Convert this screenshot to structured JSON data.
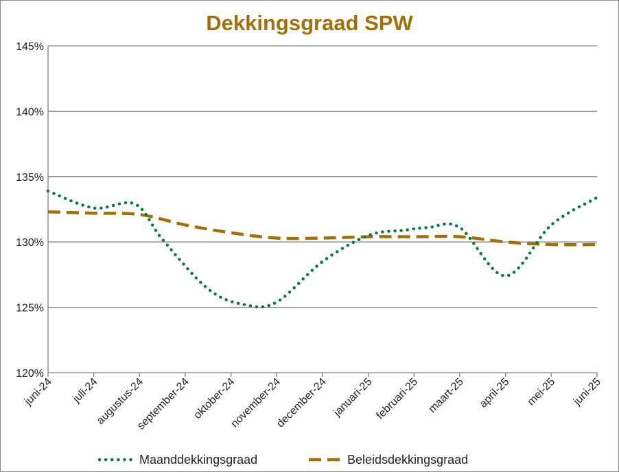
{
  "chart_data": {
    "type": "line",
    "title": "Dekkingsgraad  SPW",
    "xlabel": "",
    "ylabel": "",
    "categories": [
      "juni-24",
      "juli-24",
      "augustus-24",
      "september-24",
      "oktober-24",
      "november-24",
      "december-24",
      "januari-25",
      "februari-25",
      "maart-25",
      "april-25",
      "mei-25",
      "juni-25"
    ],
    "y_ticks": [
      "120%",
      "125%",
      "130%",
      "135%",
      "140%",
      "145%"
    ],
    "ylim": [
      120,
      145
    ],
    "grid": true,
    "legend_position": "bottom",
    "series": [
      {
        "name": "Maanddekkingsgraad",
        "style": "dotted",
        "color": "#0a7a3c",
        "x": [
          0,
          1,
          1.9,
          2.5,
          3.5,
          4.3,
          5,
          6,
          7,
          7.8,
          8.3,
          9,
          10,
          11,
          12
        ],
        "values": [
          133.9,
          132.6,
          132.9,
          130.2,
          126.4,
          125.2,
          125.4,
          128.5,
          130.5,
          130.9,
          131.1,
          131.1,
          127.4,
          131.3,
          133.4
        ]
      },
      {
        "name": "Beleidsdekkingsgraad",
        "style": "dashed",
        "color": "#a0700e",
        "x": [
          0,
          1,
          2,
          3,
          4,
          5,
          6,
          7,
          8,
          9,
          10,
          11,
          12
        ],
        "values": [
          132.3,
          132.2,
          132.1,
          131.3,
          130.7,
          130.3,
          130.3,
          130.4,
          130.4,
          130.4,
          130.0,
          129.8,
          129.8
        ]
      }
    ]
  },
  "colors": {
    "title": "#a0700e",
    "grid": "#808080"
  }
}
